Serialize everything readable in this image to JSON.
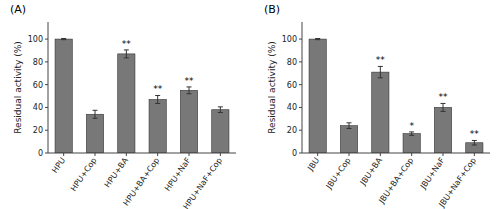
{
  "chart_data": [
    {
      "type": "bar",
      "title": "(A)",
      "categories": [
        "HPU",
        "HPU+Cop",
        "HPU+BA",
        "HPU+BA+Cop",
        "HPU+NaF",
        "HPU+NaF+Cop"
      ],
      "values": [
        100,
        34,
        87,
        47,
        55,
        38
      ],
      "errors": [
        0.5,
        3.5,
        3.5,
        3.5,
        3.0,
        2.5
      ],
      "significance": [
        null,
        null,
        "**",
        "**",
        "**",
        null
      ],
      "ylabel": "Residual activity (%)",
      "ylim": [
        0,
        115
      ],
      "yticks": [
        0,
        20,
        40,
        60,
        80,
        100
      ],
      "color": "#787878",
      "grid": false
    },
    {
      "type": "bar",
      "title": "(B)",
      "categories": [
        "JBU",
        "JBU+Cop",
        "JBU+BA",
        "JBU+BA+Cop",
        "JBU+NaF",
        "JBU+NaF+Cop"
      ],
      "values": [
        100,
        24,
        71,
        17,
        40,
        9
      ],
      "errors": [
        0.5,
        2.5,
        5.0,
        1.5,
        3.5,
        2.0
      ],
      "significance": [
        null,
        null,
        "**",
        "*",
        "**",
        "**"
      ],
      "ylabel": "Residual activity (%)",
      "ylim": [
        0,
        115
      ],
      "yticks": [
        0,
        20,
        40,
        60,
        80,
        100
      ],
      "color": "#787878",
      "grid": false
    }
  ]
}
